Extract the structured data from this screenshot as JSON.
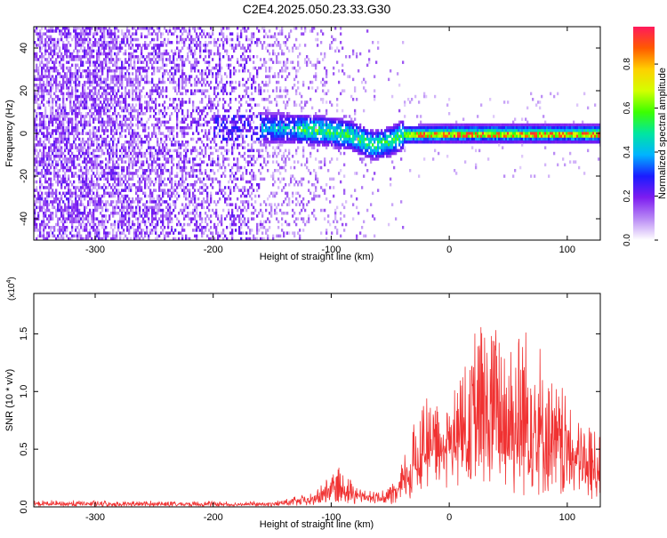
{
  "title": "C2E4.2025.050.23.33.G30",
  "chart_data": [
    {
      "type": "heatmap",
      "xlabel": "Height of straight line (km)",
      "ylabel": "Frequency (Hz)",
      "xlim": [
        -352,
        128
      ],
      "ylim": [
        -50,
        50
      ],
      "xticks": [
        -300,
        -200,
        -100,
        0,
        100
      ],
      "yticks": [
        -40,
        -20,
        0,
        20,
        40
      ],
      "colorbar": {
        "label": "Normalized spectral amplitude",
        "range": [
          0,
          0.97
        ],
        "ticks": [
          "0.0",
          "0.2",
          "0.4",
          "0.6",
          "0.8"
        ],
        "tick_values": [
          0.0,
          0.2,
          0.4,
          0.6,
          0.8
        ],
        "colors": [
          "#ffffff",
          "#b98af5",
          "#7d1cf0",
          "#1a1cff",
          "#00b4ff",
          "#00e6a0",
          "#3cff00",
          "#d4ff00",
          "#ffd000",
          "#ff5a00",
          "#ff1a5c"
        ]
      },
      "center_track": [
        {
          "x": -170,
          "y": 3
        },
        {
          "x": -140,
          "y": 3
        },
        {
          "x": -110,
          "y": 2
        },
        {
          "x": -85,
          "y": 0
        },
        {
          "x": -65,
          "y": -5
        },
        {
          "x": -50,
          "y": -3
        },
        {
          "x": -40,
          "y": 0
        },
        {
          "x": 0,
          "y": 0.5
        },
        {
          "x": 50,
          "y": 0.5
        },
        {
          "x": 128,
          "y": 0.5
        }
      ]
    },
    {
      "type": "line",
      "xlabel": "Height of straight line (km)",
      "ylabel": "SNR (10 * v/v)",
      "y_multiplier": "(x10",
      "y_multiplier_exp": "4",
      "y_multiplier_close": ")",
      "xlim": [
        -352,
        128
      ],
      "ylim": [
        0,
        1.85
      ],
      "xticks": [
        -300,
        -200,
        -100,
        0,
        100
      ],
      "yticks": [
        "0.0",
        "0.5",
        "1.0",
        "1.5"
      ],
      "ytick_values": [
        0.0,
        0.5,
        1.0,
        1.5
      ],
      "color": "#f03232",
      "envelope": [
        {
          "x": -352,
          "base": 0.02,
          "amp": 0.04
        },
        {
          "x": -150,
          "base": 0.02,
          "amp": 0.03
        },
        {
          "x": -115,
          "base": 0.05,
          "amp": 0.08
        },
        {
          "x": -95,
          "base": 0.15,
          "amp": 0.22
        },
        {
          "x": -80,
          "base": 0.12,
          "amp": 0.1
        },
        {
          "x": -60,
          "base": 0.07,
          "amp": 0.06
        },
        {
          "x": -45,
          "base": 0.1,
          "amp": 0.12
        },
        {
          "x": -30,
          "base": 0.3,
          "amp": 0.45
        },
        {
          "x": -20,
          "base": 0.5,
          "amp": 0.65
        },
        {
          "x": -10,
          "base": 0.6,
          "amp": 0.35
        },
        {
          "x": 0,
          "base": 0.65,
          "amp": 0.3
        },
        {
          "x": 10,
          "base": 0.55,
          "amp": 0.8
        },
        {
          "x": 25,
          "base": 0.55,
          "amp": 1.2
        },
        {
          "x": 40,
          "base": 0.5,
          "amp": 1.3
        },
        {
          "x": 55,
          "base": 0.5,
          "amp": 1.2
        },
        {
          "x": 70,
          "base": 0.45,
          "amp": 1.35
        },
        {
          "x": 90,
          "base": 0.35,
          "amp": 0.8
        },
        {
          "x": 110,
          "base": 0.3,
          "amp": 0.55
        },
        {
          "x": 128,
          "base": 0.25,
          "amp": 0.5
        }
      ]
    }
  ]
}
